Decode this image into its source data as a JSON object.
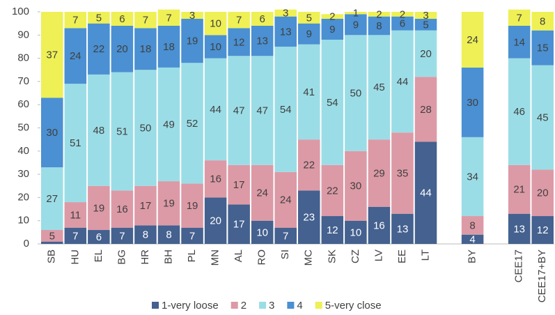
{
  "chart_data": {
    "type": "stacked_bar",
    "categories": [
      "SB",
      "HU",
      "EL",
      "BG",
      "HR",
      "BH",
      "PL",
      "MN",
      "AL",
      "RO",
      "SI",
      "MC",
      "SK",
      "CZ",
      "LV",
      "EE",
      "LT",
      null,
      "BY",
      null,
      "CEE17",
      "CEE17+BY"
    ],
    "series": [
      {
        "name": "1-very loose",
        "color": "#44618f",
        "values": [
          1,
          7,
          6,
          7,
          8,
          8,
          7,
          20,
          17,
          10,
          7,
          23,
          12,
          10,
          16,
          13,
          44,
          null,
          4,
          null,
          13,
          12
        ],
        "value_labels": [
          null,
          "7",
          "6",
          "7",
          "8",
          "8",
          "7",
          "20",
          "17",
          "10",
          "7",
          "23",
          "12",
          "10",
          "16",
          "13",
          "44",
          null,
          "4",
          null,
          "13",
          "12"
        ]
      },
      {
        "name": "2",
        "color": "#dc9aa6",
        "values": [
          5,
          11,
          19,
          16,
          17,
          19,
          19,
          16,
          17,
          24,
          24,
          22,
          22,
          30,
          29,
          35,
          28,
          null,
          8,
          null,
          21,
          20
        ]
      },
      {
        "name": "3",
        "color": "#9bdde6",
        "values": [
          27,
          51,
          48,
          51,
          50,
          49,
          52,
          44,
          47,
          47,
          54,
          41,
          54,
          50,
          45,
          44,
          20,
          null,
          34,
          null,
          46,
          45
        ]
      },
      {
        "name": "4",
        "color": "#4a90d2",
        "values": [
          30,
          24,
          22,
          20,
          18,
          18,
          19,
          10,
          12,
          13,
          13,
          9,
          9,
          9,
          8,
          6,
          5,
          null,
          30,
          null,
          14,
          15
        ]
      },
      {
        "name": "5-very close",
        "color": "#eef055",
        "values": [
          37,
          7,
          5,
          6,
          7,
          7,
          3,
          10,
          7,
          6,
          3,
          5,
          2,
          1,
          2,
          2,
          3,
          null,
          24,
          null,
          7,
          8
        ]
      }
    ],
    "ylim": [
      0,
      100
    ],
    "yticks": [
      0,
      10,
      20,
      30,
      40,
      50,
      60,
      70,
      80,
      90,
      100
    ],
    "legend": "bottom"
  }
}
